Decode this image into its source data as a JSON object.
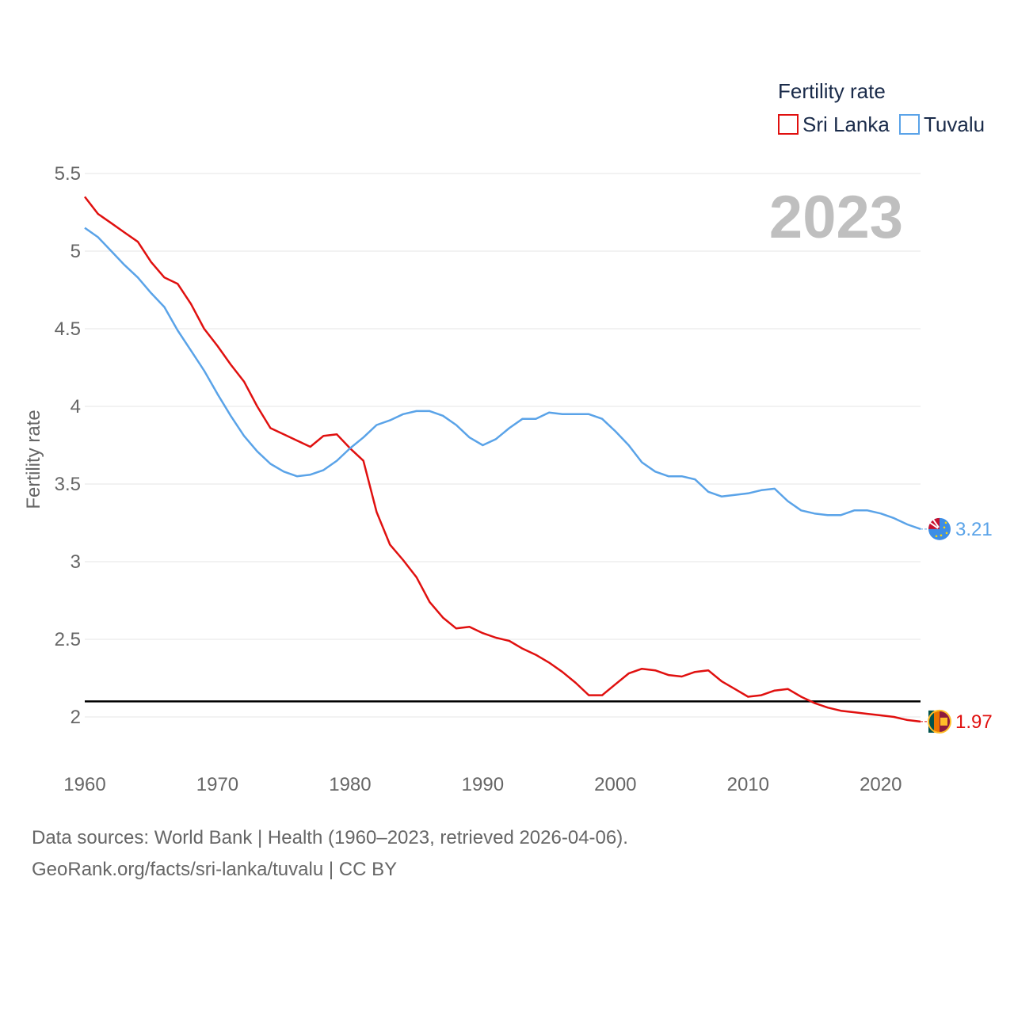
{
  "chart_data": {
    "type": "line",
    "legend_title": "Fertility rate",
    "ylabel": "Fertility rate",
    "xlabel": "",
    "year_label": "2023",
    "xlim": [
      1960,
      2023
    ],
    "ylim": [
      1.75,
      5.6
    ],
    "y_ticks": [
      2,
      2.5,
      3,
      3.5,
      4,
      4.5,
      5,
      5.5
    ],
    "y_tick_labels": [
      "2",
      "2.5",
      "3",
      "3.5",
      "4",
      "4.5",
      "5",
      "5.5"
    ],
    "x_ticks": [
      1960,
      1970,
      1980,
      1990,
      2000,
      2010,
      2020
    ],
    "x_tick_labels": [
      "1960",
      "1970",
      "1980",
      "1990",
      "2000",
      "2010",
      "2020"
    ],
    "reference_line": 2.1,
    "x": [
      1960,
      1961,
      1962,
      1963,
      1964,
      1965,
      1966,
      1967,
      1968,
      1969,
      1970,
      1971,
      1972,
      1973,
      1974,
      1975,
      1976,
      1977,
      1978,
      1979,
      1980,
      1981,
      1982,
      1983,
      1984,
      1985,
      1986,
      1987,
      1988,
      1989,
      1990,
      1991,
      1992,
      1993,
      1994,
      1995,
      1996,
      1997,
      1998,
      1999,
      2000,
      2001,
      2002,
      2003,
      2004,
      2005,
      2006,
      2007,
      2008,
      2009,
      2010,
      2011,
      2012,
      2013,
      2014,
      2015,
      2016,
      2017,
      2018,
      2019,
      2020,
      2021,
      2022,
      2023
    ],
    "series": [
      {
        "name": "Sri Lanka",
        "color": "#e0100f",
        "end_label": "1.97",
        "values": [
          5.35,
          5.24,
          5.18,
          5.12,
          5.06,
          4.93,
          4.83,
          4.79,
          4.66,
          4.5,
          4.39,
          4.27,
          4.16,
          4.0,
          3.86,
          3.82,
          3.78,
          3.74,
          3.81,
          3.82,
          3.73,
          3.65,
          3.32,
          3.11,
          3.01,
          2.9,
          2.74,
          2.64,
          2.57,
          2.58,
          2.54,
          2.51,
          2.49,
          2.44,
          2.4,
          2.35,
          2.29,
          2.22,
          2.14,
          2.14,
          2.21,
          2.28,
          2.31,
          2.3,
          2.27,
          2.26,
          2.29,
          2.3,
          2.23,
          2.18,
          2.13,
          2.14,
          2.17,
          2.18,
          2.13,
          2.09,
          2.06,
          2.04,
          2.03,
          2.02,
          2.01,
          2.0,
          1.98,
          1.97
        ]
      },
      {
        "name": "Tuvalu",
        "color": "#5aa3e8",
        "end_label": "3.21",
        "values": [
          5.15,
          5.09,
          5.0,
          4.91,
          4.83,
          4.73,
          4.64,
          4.49,
          4.36,
          4.23,
          4.08,
          3.94,
          3.81,
          3.71,
          3.63,
          3.58,
          3.55,
          3.56,
          3.59,
          3.65,
          3.73,
          3.8,
          3.88,
          3.91,
          3.95,
          3.97,
          3.97,
          3.94,
          3.88,
          3.8,
          3.75,
          3.79,
          3.86,
          3.92,
          3.92,
          3.96,
          3.95,
          3.95,
          3.95,
          3.92,
          3.84,
          3.75,
          3.64,
          3.58,
          3.55,
          3.55,
          3.53,
          3.45,
          3.42,
          3.43,
          3.44,
          3.46,
          3.47,
          3.39,
          3.33,
          3.31,
          3.3,
          3.3,
          3.33,
          3.33,
          3.31,
          3.28,
          3.24,
          3.21
        ]
      }
    ]
  },
  "footer": {
    "line1": "Data sources: World Bank | Health (1960–2023, retrieved 2026-04-06).",
    "line2": "GeoRank.org/facts/sri-lanka/tuvalu | CC BY"
  }
}
